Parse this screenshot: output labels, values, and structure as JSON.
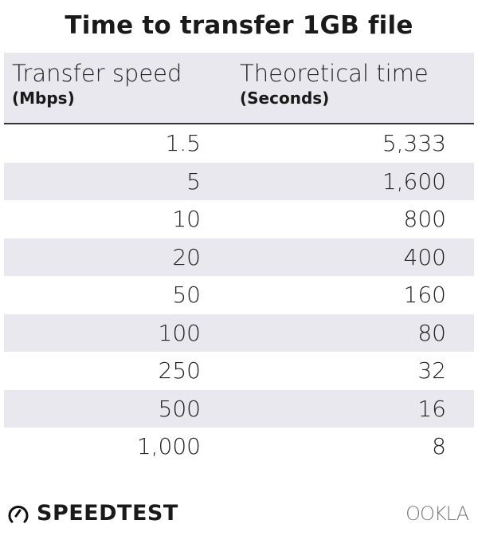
{
  "chart_data": {
    "type": "table",
    "title": "Time to transfer 1GB file",
    "columns": [
      {
        "label": "Transfer speed",
        "unit": "(Mbps)"
      },
      {
        "label": "Theoretical time",
        "unit": "(Seconds)"
      }
    ],
    "rows": [
      [
        "1.5",
        "5,333"
      ],
      [
        "5",
        "1,600"
      ],
      [
        "10",
        "800"
      ],
      [
        "20",
        "400"
      ],
      [
        "50",
        "160"
      ],
      [
        "100",
        "80"
      ],
      [
        "250",
        "32"
      ],
      [
        "500",
        "16"
      ],
      [
        "1,000",
        "8"
      ]
    ],
    "row_stripe_color": "#e9e8ee"
  },
  "footer": {
    "brand": "SPEEDTEST",
    "brand_icon": "speedometer-icon",
    "partner_logo": "OOKLA"
  }
}
